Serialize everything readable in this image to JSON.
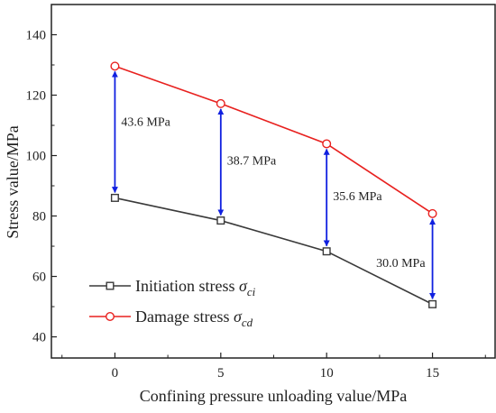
{
  "chart_data": {
    "type": "line",
    "xlabel": "Confining pressure unloading value/MPa",
    "ylabel": "Stress value/MPa",
    "x": [
      0,
      5,
      10,
      15
    ],
    "xlim": [
      -3,
      18
    ],
    "ylim": [
      33,
      150
    ],
    "xticks": [
      "0",
      "5",
      "10",
      "15"
    ],
    "yticks": [
      "40",
      "60",
      "80",
      "100",
      "120",
      "140"
    ],
    "series": [
      {
        "name": "Initiation stress σ",
        "subscript": "ci",
        "marker": "square",
        "color": "#3a3a3a",
        "values": [
          86.0,
          78.5,
          68.3,
          50.8
        ]
      },
      {
        "name": "Damage stress σ",
        "subscript": "cd",
        "marker": "circle",
        "color": "#e8211f",
        "values": [
          129.6,
          117.2,
          103.9,
          80.8
        ]
      }
    ],
    "annotations": [
      {
        "x": 0,
        "label": "43.6 MPa"
      },
      {
        "x": 5,
        "label": "38.7 MPa"
      },
      {
        "x": 10,
        "label": "35.6 MPa"
      },
      {
        "x": 15,
        "label": "30.0 MPa"
      }
    ],
    "arrow_color": "#1020e0",
    "legend_position": "bottom-left",
    "grid": false
  }
}
